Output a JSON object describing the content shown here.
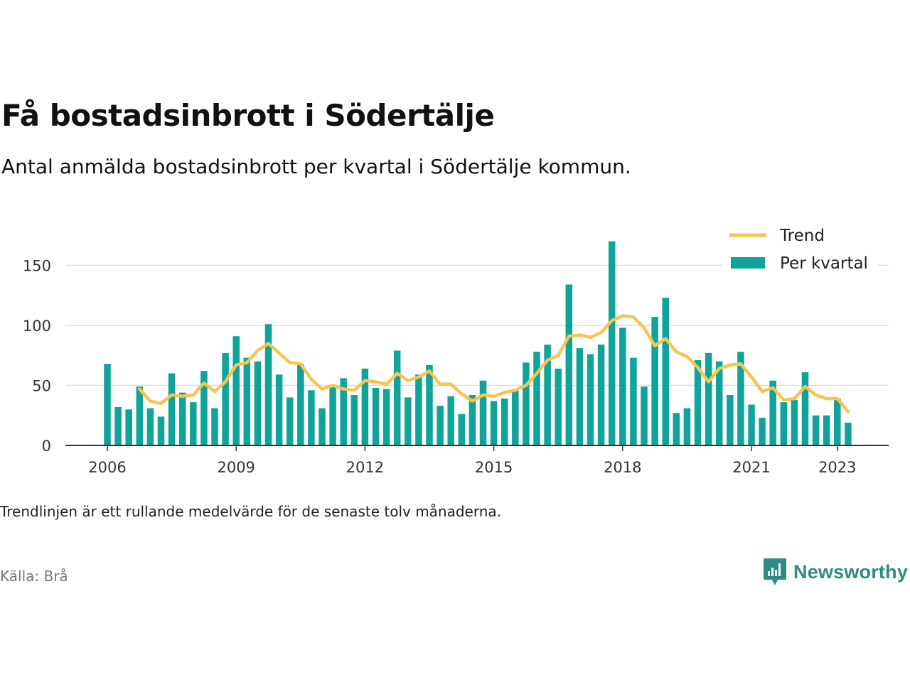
{
  "header": {
    "title": "Få bostadsinbrott i Södertälje",
    "subtitle": "Antal anmälda bostadsinbrott per kvartal i Södertälje kommun."
  },
  "footer": {
    "note": "Trendlinjen är ett rullande medelvärde för de senaste tolv månaderna.",
    "source": "Källa: Brå",
    "brand": "Newsworthy"
  },
  "colors": {
    "bar": "#0fa39a",
    "trend": "#f6c453",
    "grid": "#dddddd",
    "axis": "#333333",
    "brand": "#2e8b83"
  },
  "chart_data": {
    "type": "bar",
    "ylim": [
      0,
      175
    ],
    "yticks": [
      0,
      50,
      100,
      150
    ],
    "xticks": [
      "2006",
      "2009",
      "2012",
      "2015",
      "2018",
      "2021",
      "2023"
    ],
    "grid": true,
    "legend_position": "top-right",
    "categories": [
      "2006 Q1",
      "2006 Q2",
      "2006 Q3",
      "2006 Q4",
      "2007 Q1",
      "2007 Q2",
      "2007 Q3",
      "2007 Q4",
      "2008 Q1",
      "2008 Q2",
      "2008 Q3",
      "2008 Q4",
      "2009 Q1",
      "2009 Q2",
      "2009 Q3",
      "2009 Q4",
      "2010 Q1",
      "2010 Q2",
      "2010 Q3",
      "2010 Q4",
      "2011 Q1",
      "2011 Q2",
      "2011 Q3",
      "2011 Q4",
      "2012 Q1",
      "2012 Q2",
      "2012 Q3",
      "2012 Q4",
      "2013 Q1",
      "2013 Q2",
      "2013 Q3",
      "2013 Q4",
      "2014 Q1",
      "2014 Q2",
      "2014 Q3",
      "2014 Q4",
      "2015 Q1",
      "2015 Q2",
      "2015 Q3",
      "2015 Q4",
      "2016 Q1",
      "2016 Q2",
      "2016 Q3",
      "2016 Q4",
      "2017 Q1",
      "2017 Q2",
      "2017 Q3",
      "2017 Q4",
      "2018 Q1",
      "2018 Q2",
      "2018 Q3",
      "2018 Q4",
      "2019 Q1",
      "2019 Q2",
      "2019 Q3",
      "2019 Q4",
      "2020 Q1",
      "2020 Q2",
      "2020 Q3",
      "2020 Q4",
      "2021 Q1",
      "2021 Q2",
      "2021 Q3",
      "2021 Q4",
      "2022 Q1",
      "2022 Q2",
      "2022 Q3",
      "2022 Q4",
      "2023 Q1",
      "2023 Q2"
    ],
    "series": [
      {
        "name": "Per kvartal",
        "type": "bar",
        "values": [
          68,
          32,
          30,
          49,
          31,
          24,
          60,
          44,
          36,
          62,
          31,
          77,
          91,
          73,
          70,
          101,
          59,
          40,
          68,
          46,
          31,
          49,
          56,
          42,
          64,
          48,
          47,
          79,
          40,
          59,
          67,
          33,
          41,
          26,
          42,
          54,
          37,
          39,
          47,
          69,
          78,
          84,
          64,
          134,
          81,
          76,
          84,
          170,
          98,
          73,
          49,
          107,
          123,
          27,
          31,
          71,
          77,
          70,
          42,
          78,
          34,
          23,
          54,
          36,
          38,
          61,
          25,
          25,
          39,
          19
        ]
      },
      {
        "name": "Trend",
        "type": "line",
        "values": [
          null,
          null,
          null,
          47,
          37,
          35,
          42,
          41,
          42,
          52,
          45,
          53,
          67,
          69,
          79,
          85,
          77,
          69,
          68,
          55,
          47,
          50,
          47,
          46,
          54,
          53,
          51,
          60,
          54,
          57,
          62,
          51,
          51,
          43,
          37,
          42,
          41,
          44,
          46,
          50,
          60,
          71,
          75,
          91,
          92,
          90,
          94,
          104,
          108,
          107,
          98,
          83,
          89,
          78,
          74,
          65,
          53,
          64,
          67,
          68,
          57,
          45,
          48,
          38,
          39,
          49,
          42,
          39,
          39,
          28
        ]
      }
    ]
  }
}
